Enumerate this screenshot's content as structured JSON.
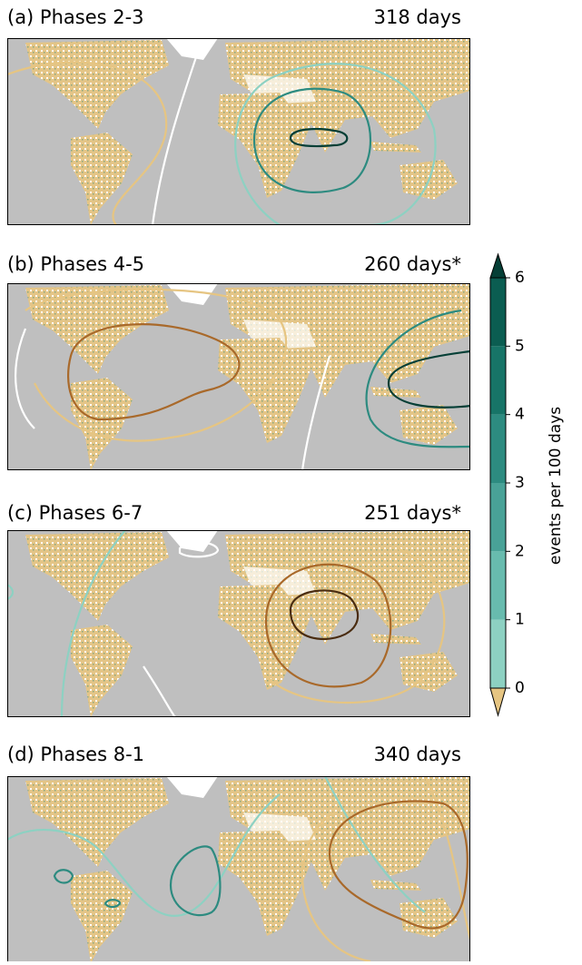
{
  "panels": [
    {
      "label": "(a) Phases 2-3",
      "days": "318 days"
    },
    {
      "label": "(b) Phases 4-5",
      "days": "260 days*"
    },
    {
      "label": "(c) Phases 6-7",
      "days": "251 days*"
    },
    {
      "label": "(d) Phases 8-1",
      "days": "340 days"
    }
  ],
  "colorbar": {
    "label": "events per 100 days",
    "lim": [
      0,
      6
    ],
    "ticks": [
      0,
      1,
      2,
      3,
      4,
      5,
      6
    ],
    "colors": [
      "#8dd1c2",
      "#68bbae",
      "#49a297",
      "#2d8b80",
      "#177467",
      "#0b5d51"
    ],
    "extend_low_color": "#e6c582",
    "extend_high_color": "#053f36"
  }
}
